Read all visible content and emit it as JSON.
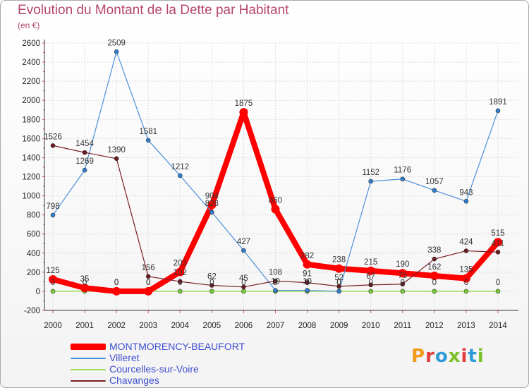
{
  "header": {
    "title": "Evolution du Montant de la Dette par Habitant",
    "unit": "(en €)"
  },
  "logo": {
    "text": "Proxiti",
    "colors": [
      "#f29a1a",
      "#e23b3b",
      "#2f9ad6",
      "#7cbf2a",
      "#e23b3b",
      "#2f9ad6",
      "#7cbf2a"
    ]
  },
  "chart_data": {
    "type": "line",
    "title": "Evolution du Montant de la Dette par Habitant",
    "ylabel": "(en €)",
    "xlabel": "",
    "ylim": [
      -200,
      2600
    ],
    "y_ticks": [
      -200,
      0,
      200,
      400,
      600,
      800,
      1000,
      1200,
      1400,
      1600,
      1800,
      2000,
      2200,
      2400,
      2600
    ],
    "x": [
      "2000",
      "2001",
      "2002",
      "2003",
      "2004",
      "2005",
      "2006",
      "2007",
      "2008",
      "2009",
      "2010",
      "2011",
      "2012",
      "2013",
      "2014"
    ],
    "grid": true,
    "legend_position": "bottom-left",
    "series": [
      {
        "name": "MONTMORENCY-BEAUFORT",
        "color": "#ff0000",
        "values": [
          125,
          35,
          0,
          0,
          203,
          904,
          1875,
          860,
          282,
          238,
          215,
          190,
          162,
          135,
          515
        ],
        "labels": [
          "125",
          "35",
          "0",
          "0",
          "203",
          "904",
          "1875",
          "860",
          "282",
          "238",
          "215",
          "190",
          "162",
          "135",
          "515"
        ]
      },
      {
        "name": "Villeret",
        "color": "#4a90d9",
        "values": [
          798,
          1269,
          2509,
          1581,
          1212,
          828,
          427,
          10,
          10,
          0,
          1152,
          1176,
          1057,
          943,
          1891
        ],
        "labels": [
          "798",
          "1269",
          "2509",
          "1581",
          "1212",
          "828",
          "427",
          "10",
          "10",
          "0",
          "1152",
          "1176",
          "1057",
          "943",
          "1891"
        ]
      },
      {
        "name": "Courcelles-sur-Voire",
        "color": "#99dd55",
        "values": [
          0,
          0,
          0,
          0,
          0,
          0,
          0,
          0,
          0,
          0,
          0,
          0,
          0,
          0,
          0
        ],
        "labels": [
          "0",
          "0",
          "0",
          "0",
          "0",
          "0",
          "0",
          "0",
          "0",
          "0",
          "0",
          "0",
          "0",
          "0",
          "0"
        ]
      },
      {
        "name": "Chavanges",
        "color": "#7a1f25",
        "values": [
          1526,
          1454,
          1390,
          156,
          102,
          62,
          45,
          108,
          91,
          52,
          67,
          75,
          338,
          424,
          411
        ],
        "labels": [
          "1526",
          "1454",
          "1390",
          "156",
          "102",
          "62",
          "45",
          "108",
          "91",
          "52",
          "67",
          "75",
          "338",
          "424",
          "411"
        ]
      }
    ]
  }
}
